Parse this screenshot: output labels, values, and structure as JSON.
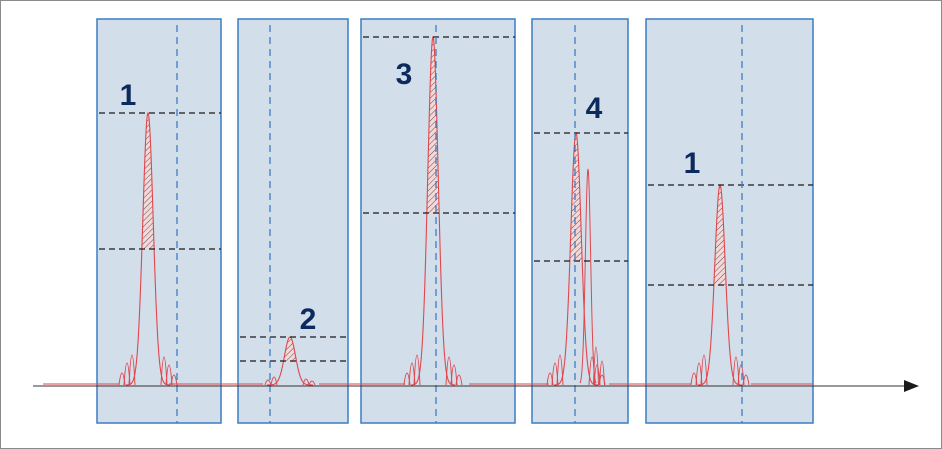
{
  "colors": {
    "window_fill": "#d3deeb",
    "window_border": "#3b7dc4",
    "center_line": "#3b7dc4",
    "signal": "#e0474c",
    "level_line": "#1a1a1a",
    "axis": "#333333",
    "label": "#0b2a5e"
  },
  "windows": [
    {
      "label": "1",
      "peak_level": 0.68,
      "half_level": 0.34
    },
    {
      "label": "2",
      "peak_level": 0.12,
      "half_level": 0.06
    },
    {
      "label": "3",
      "peak_level": 0.87,
      "half_level": 0.43
    },
    {
      "label": "4",
      "peak_level": 0.63,
      "half_level": 0.31
    },
    {
      "label": "1",
      "peak_level": 0.5,
      "half_level": 0.25
    }
  ]
}
